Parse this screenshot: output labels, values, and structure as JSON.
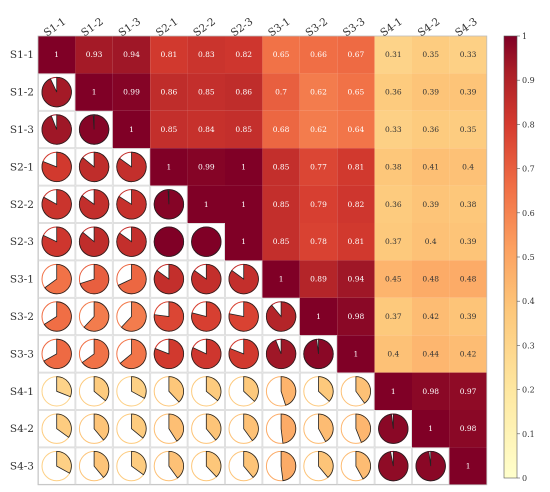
{
  "chart_data": {
    "type": "heatmap",
    "subtype": "correlation-matrix",
    "title": "",
    "labels": [
      "S1-1",
      "S1-2",
      "S1-3",
      "S2-1",
      "S2-2",
      "S2-3",
      "S3-1",
      "S3-2",
      "S3-3",
      "S4-1",
      "S4-2",
      "S4-3"
    ],
    "values": [
      [
        1,
        0.93,
        0.94,
        0.81,
        0.83,
        0.82,
        0.65,
        0.66,
        0.67,
        0.31,
        0.35,
        0.33
      ],
      [
        0.93,
        1,
        0.99,
        0.86,
        0.85,
        0.86,
        0.7,
        0.62,
        0.65,
        0.36,
        0.39,
        0.39
      ],
      [
        0.94,
        0.99,
        1,
        0.85,
        0.84,
        0.85,
        0.68,
        0.62,
        0.64,
        0.33,
        0.36,
        0.35
      ],
      [
        0.81,
        0.86,
        0.85,
        1,
        0.99,
        1,
        0.85,
        0.77,
        0.81,
        0.38,
        0.41,
        0.4
      ],
      [
        0.83,
        0.85,
        0.84,
        0.99,
        1,
        1,
        0.85,
        0.79,
        0.82,
        0.36,
        0.39,
        0.38
      ],
      [
        0.82,
        0.86,
        0.85,
        1,
        1,
        1,
        0.85,
        0.78,
        0.81,
        0.37,
        0.4,
        0.39
      ],
      [
        0.65,
        0.7,
        0.68,
        0.85,
        0.85,
        0.85,
        1,
        0.89,
        0.94,
        0.45,
        0.48,
        0.48
      ],
      [
        0.66,
        0.62,
        0.62,
        0.77,
        0.79,
        0.78,
        0.89,
        1,
        0.98,
        0.37,
        0.42,
        0.39
      ],
      [
        0.67,
        0.65,
        0.64,
        0.81,
        0.82,
        0.81,
        0.94,
        0.98,
        1,
        0.4,
        0.44,
        0.42
      ],
      [
        0.31,
        0.36,
        0.33,
        0.38,
        0.36,
        0.37,
        0.45,
        0.37,
        0.4,
        1,
        0.98,
        0.97
      ],
      [
        0.35,
        0.39,
        0.36,
        0.41,
        0.39,
        0.4,
        0.48,
        0.42,
        0.44,
        0.98,
        1,
        0.98
      ],
      [
        0.33,
        0.39,
        0.35,
        0.4,
        0.38,
        0.39,
        0.48,
        0.39,
        0.42,
        0.97,
        0.98,
        1
      ]
    ],
    "upper_triangle": "colored squares with printed values",
    "lower_triangle": "pie glyphs filled proportionally to value",
    "colorbar": {
      "range": [
        0,
        1
      ],
      "ticks": [
        "0",
        "0.1",
        "0.2",
        "0.3",
        "0.4",
        "0.5",
        "0.6",
        "0.7",
        "0.8",
        "0.9",
        "1"
      ],
      "position": "right"
    },
    "colors": {
      "low": "#fef3b3",
      "mid_low": "#fdb56d",
      "mid": "#f4a05b",
      "mid_high": "#e6542f",
      "high": "#7f1a1d",
      "cell_border": "#d9d9d9"
    }
  }
}
